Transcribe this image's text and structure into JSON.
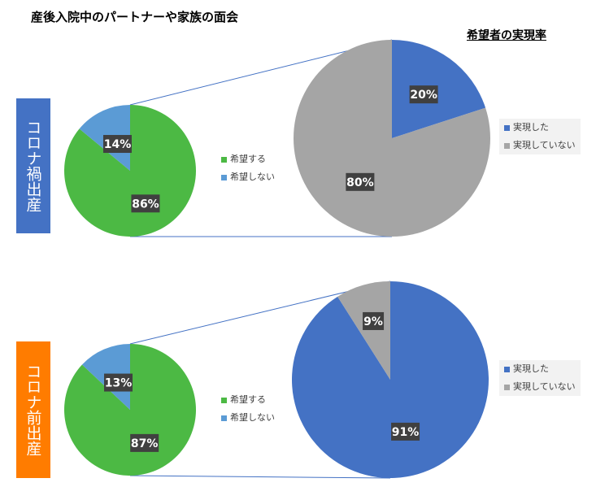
{
  "title": "産後入院中のパートナーや家族の面会",
  "subtitle": "希望者の実現率",
  "groups": [
    {
      "label": "コロナ禍出産",
      "color": "#4472c4"
    },
    {
      "label": "コロナ前出産",
      "color": "#ff7c00"
    }
  ],
  "legends": {
    "wish": [
      "希望する",
      "希望しない"
    ],
    "realized": [
      "実現した",
      "実現していない"
    ]
  },
  "colors": {
    "wish": "#4cb944",
    "no_wish": "#5b9bd5",
    "realized": "#4472c4",
    "not_realized": "#a5a5a5",
    "connector": "#4472c4",
    "label_bg": "#404040"
  },
  "chart_data": [
    {
      "type": "pie",
      "group": "コロナ禍出産",
      "categories": [
        "希望する",
        "希望しない"
      ],
      "values": [
        86,
        14
      ],
      "labels": [
        "86%",
        "14%"
      ]
    },
    {
      "type": "pie",
      "group": "コロナ禍出産",
      "title": "希望者の実現率",
      "categories": [
        "実現した",
        "実現していない"
      ],
      "values": [
        20,
        80
      ],
      "labels": [
        "20%",
        "80%"
      ]
    },
    {
      "type": "pie",
      "group": "コロナ前出産",
      "categories": [
        "希望する",
        "希望しない"
      ],
      "values": [
        87,
        13
      ],
      "labels": [
        "87%",
        "13%"
      ]
    },
    {
      "type": "pie",
      "group": "コロナ前出産",
      "title": "希望者の実現率",
      "categories": [
        "実現した",
        "実現していない"
      ],
      "values": [
        91,
        9
      ],
      "labels": [
        "91%",
        "9%"
      ]
    }
  ]
}
